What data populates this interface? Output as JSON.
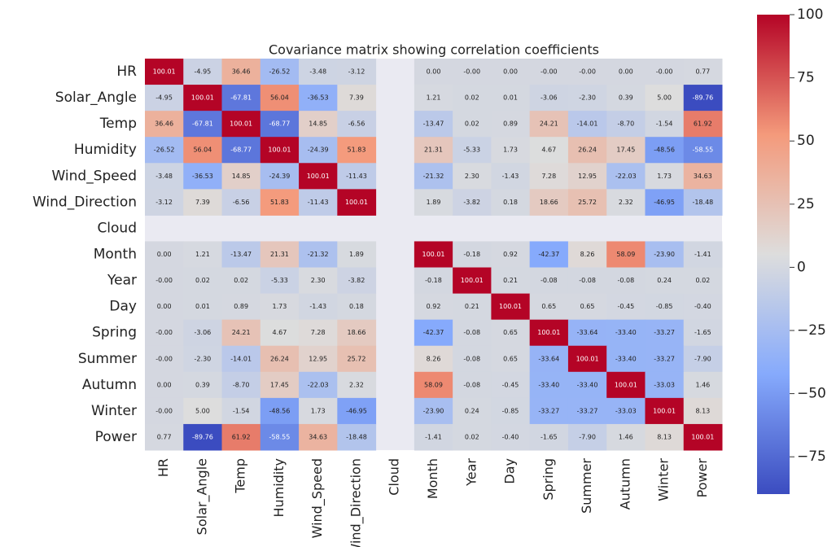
{
  "chart_data": {
    "type": "heatmap",
    "title": "Covariance matrix showing correlation coefficients",
    "categories": [
      "HR",
      "Solar_Angle",
      "Temp",
      "Humidity",
      "Wind_Speed",
      "Wind_Direction",
      "Cloud",
      "Month",
      "Year",
      "Day",
      "Spring",
      "Summer",
      "Autumn",
      "Winter",
      "Power"
    ],
    "values": [
      [
        100.01,
        -4.95,
        36.46,
        -26.52,
        -3.48,
        -3.12,
        null,
        0,
        0,
        0,
        0,
        0,
        0,
        0,
        0.77
      ],
      [
        -4.95,
        100.01,
        -67.81,
        56.04,
        -36.53,
        7.39,
        null,
        1.21,
        0.02,
        0.01,
        -3.06,
        -2.3,
        0.39,
        5,
        -89.76
      ],
      [
        36.46,
        -67.81,
        100.01,
        -68.77,
        14.85,
        -6.56,
        null,
        -13.47,
        0.02,
        0.89,
        24.21,
        -14.01,
        -8.7,
        -1.54,
        61.92
      ],
      [
        -26.52,
        56.04,
        -68.77,
        100.01,
        -24.39,
        51.83,
        null,
        21.31,
        -5.33,
        1.73,
        4.67,
        26.24,
        17.45,
        -48.56,
        -58.55
      ],
      [
        -3.48,
        -36.53,
        14.85,
        -24.39,
        100.01,
        -11.43,
        null,
        -21.32,
        2.3,
        -1.43,
        7.28,
        12.95,
        -22.03,
        1.73,
        34.63
      ],
      [
        -3.12,
        7.39,
        -6.56,
        51.83,
        -11.43,
        100.01,
        null,
        1.89,
        -3.82,
        0.18,
        18.66,
        25.72,
        2.32,
        -46.95,
        -18.48
      ],
      [
        null,
        null,
        null,
        null,
        null,
        null,
        null,
        null,
        null,
        null,
        null,
        null,
        null,
        null,
        null
      ],
      [
        0,
        1.21,
        -13.47,
        21.31,
        -21.32,
        1.89,
        null,
        100.01,
        -0.18,
        0.92,
        -42.37,
        8.26,
        58.09,
        -23.9,
        -1.41
      ],
      [
        0,
        0.02,
        0.02,
        -5.33,
        2.3,
        -3.82,
        null,
        -0.18,
        100.01,
        0.21,
        -0.08,
        -0.08,
        -0.08,
        0.24,
        0.02
      ],
      [
        0,
        0.01,
        0.89,
        1.73,
        -1.43,
        0.18,
        null,
        0.92,
        0.21,
        100.01,
        0.65,
        0.65,
        -0.45,
        -0.85,
        -0.4
      ],
      [
        0,
        -3.06,
        24.21,
        4.67,
        7.28,
        18.66,
        null,
        -42.37,
        -0.08,
        0.65,
        100.01,
        -33.64,
        -33.4,
        -33.27,
        -1.65
      ],
      [
        0,
        -2.3,
        -14.01,
        26.24,
        12.95,
        25.72,
        null,
        8.26,
        -0.08,
        0.65,
        -33.64,
        100.01,
        -33.4,
        -33.27,
        -7.9
      ],
      [
        0,
        0.39,
        -8.7,
        17.45,
        -22.03,
        2.32,
        null,
        58.09,
        -0.08,
        -0.45,
        -33.4,
        -33.4,
        100.01,
        -33.03,
        1.46
      ],
      [
        0,
        5,
        -1.54,
        -48.56,
        1.73,
        -46.95,
        null,
        -23.9,
        0.24,
        -0.85,
        -33.27,
        -33.27,
        -33.03,
        100.01,
        8.13
      ],
      [
        0.77,
        -89.76,
        61.92,
        -58.55,
        34.63,
        -18.48,
        null,
        -1.41,
        0.02,
        -0.4,
        -1.65,
        -7.9,
        1.46,
        8.13,
        100.01
      ]
    ],
    "value_labels": [
      [
        "100.01",
        "-4.95",
        "36.46",
        "-26.52",
        "-3.48",
        "-3.12",
        null,
        "0.00",
        "-0.00",
        "0.00",
        "-0.00",
        "-0.00",
        "0.00",
        "-0.00",
        "0.77"
      ],
      [
        "-4.95",
        "100.01",
        "-67.81",
        "56.04",
        "-36.53",
        "7.39",
        null,
        "1.21",
        "0.02",
        "0.01",
        "-3.06",
        "-2.30",
        "0.39",
        "5.00",
        "-89.76"
      ],
      [
        "36.46",
        "-67.81",
        "100.01",
        "-68.77",
        "14.85",
        "-6.56",
        null,
        "-13.47",
        "0.02",
        "0.89",
        "24.21",
        "-14.01",
        "-8.70",
        "-1.54",
        "61.92"
      ],
      [
        "-26.52",
        "56.04",
        "-68.77",
        "100.01",
        "-24.39",
        "51.83",
        null,
        "21.31",
        "-5.33",
        "1.73",
        "4.67",
        "26.24",
        "17.45",
        "-48.56",
        "-58.55"
      ],
      [
        "-3.48",
        "-36.53",
        "14.85",
        "-24.39",
        "100.01",
        "-11.43",
        null,
        "-21.32",
        "2.30",
        "-1.43",
        "7.28",
        "12.95",
        "-22.03",
        "1.73",
        "34.63"
      ],
      [
        "-3.12",
        "7.39",
        "-6.56",
        "51.83",
        "-11.43",
        "100.01",
        null,
        "1.89",
        "-3.82",
        "0.18",
        "18.66",
        "25.72",
        "2.32",
        "-46.95",
        "-18.48"
      ],
      [
        null,
        null,
        null,
        null,
        null,
        null,
        null,
        null,
        null,
        null,
        null,
        null,
        null,
        null,
        null
      ],
      [
        "0.00",
        "1.21",
        "-13.47",
        "21.31",
        "-21.32",
        "1.89",
        null,
        "100.01",
        "-0.18",
        "0.92",
        "-42.37",
        "8.26",
        "58.09",
        "-23.90",
        "-1.41"
      ],
      [
        "-0.00",
        "0.02",
        "0.02",
        "-5.33",
        "2.30",
        "-3.82",
        null,
        "-0.18",
        "100.01",
        "0.21",
        "-0.08",
        "-0.08",
        "-0.08",
        "0.24",
        "0.02"
      ],
      [
        "0.00",
        "0.01",
        "0.89",
        "1.73",
        "-1.43",
        "0.18",
        null,
        "0.92",
        "0.21",
        "100.01",
        "0.65",
        "0.65",
        "-0.45",
        "-0.85",
        "-0.40"
      ],
      [
        "-0.00",
        "-3.06",
        "24.21",
        "4.67",
        "7.28",
        "18.66",
        null,
        "-42.37",
        "-0.08",
        "0.65",
        "100.01",
        "-33.64",
        "-33.40",
        "-33.27",
        "-1.65"
      ],
      [
        "-0.00",
        "-2.30",
        "-14.01",
        "26.24",
        "12.95",
        "25.72",
        null,
        "8.26",
        "-0.08",
        "0.65",
        "-33.64",
        "100.01",
        "-33.40",
        "-33.27",
        "-7.90"
      ],
      [
        "0.00",
        "0.39",
        "-8.70",
        "17.45",
        "-22.03",
        "2.32",
        null,
        "58.09",
        "-0.08",
        "-0.45",
        "-33.40",
        "-33.40",
        "100.01",
        "-33.03",
        "1.46"
      ],
      [
        "-0.00",
        "5.00",
        "-1.54",
        "-48.56",
        "1.73",
        "-46.95",
        null,
        "-23.90",
        "0.24",
        "-0.85",
        "-33.27",
        "-33.27",
        "-33.03",
        "100.01",
        "8.13"
      ],
      [
        "0.77",
        "-89.76",
        "61.92",
        "-58.55",
        "34.63",
        "-18.48",
        null,
        "-1.41",
        "0.02",
        "-0.40",
        "-1.65",
        "-7.90",
        "1.46",
        "8.13",
        "100.01"
      ]
    ],
    "colormap": "coolwarm",
    "clim": [
      -89.76,
      100.01
    ],
    "cticks": [
      {
        "value": -75,
        "label": "−75"
      },
      {
        "value": -50,
        "label": "−50"
      },
      {
        "value": -25,
        "label": "−25"
      },
      0,
      25,
      50,
      75,
      100
    ]
  }
}
